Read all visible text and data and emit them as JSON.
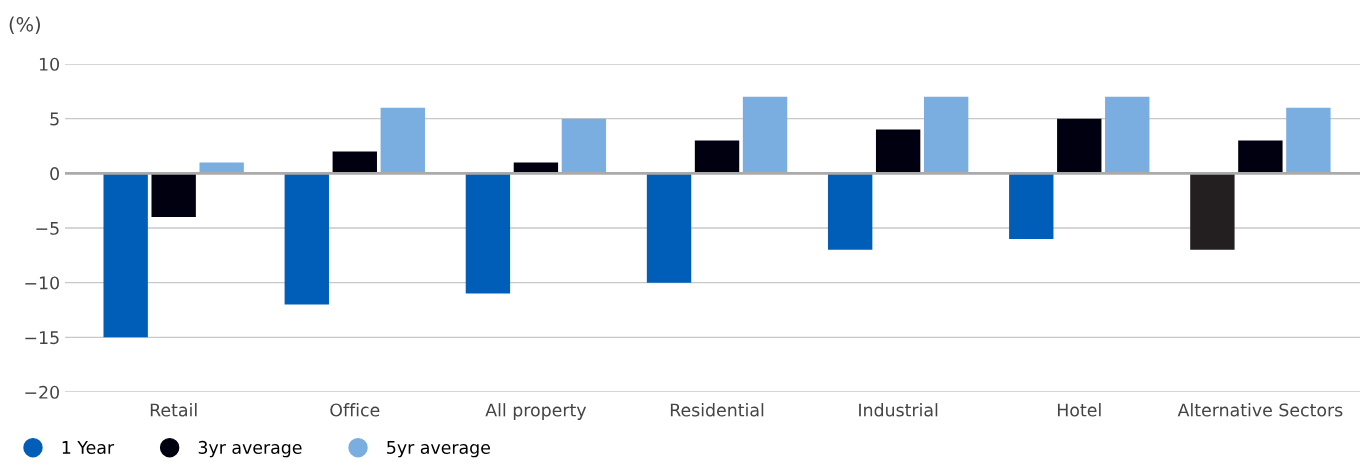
{
  "chart_data": {
    "type": "bar",
    "ylabel": "(%)",
    "categories": [
      "Retail",
      "Office",
      "All property",
      "Residential",
      "Industrial",
      "Hotel",
      "Alternative Sectors"
    ],
    "series": [
      {
        "name": "1 Year",
        "color": "#005eb8",
        "colors": [
          "#005eb8",
          "#005eb8",
          "#005eb8",
          "#005eb8",
          "#005eb8",
          "#005eb8",
          "#231f20"
        ],
        "values": [
          -15,
          -12,
          -11,
          -10,
          -7,
          -6,
          -7
        ]
      },
      {
        "name": "3yr average",
        "color": "#000010",
        "values": [
          -4,
          2,
          1,
          3,
          4,
          5,
          3
        ]
      },
      {
        "name": "5yr average",
        "color": "#7aade0",
        "values": [
          1,
          6,
          5,
          7,
          7,
          7,
          6
        ]
      }
    ],
    "ylim": [
      -20,
      10
    ],
    "yticks": [
      {
        "value": -20,
        "label": "−20"
      },
      {
        "value": -15,
        "label": "−15"
      },
      {
        "value": -10,
        "label": "−10"
      },
      {
        "value": -5,
        "label": "−5"
      },
      0,
      5,
      10
    ],
    "grid": "y",
    "legend": "bottom left"
  }
}
